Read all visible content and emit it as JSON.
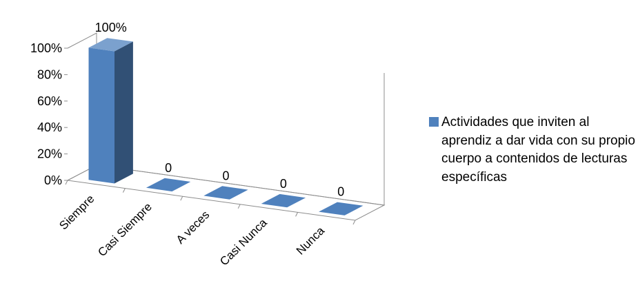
{
  "chart_data": {
    "type": "bar",
    "title": "",
    "xlabel": "",
    "ylabel": "",
    "categories": [
      "Siempre",
      "Casi Siempre",
      "A veces",
      "Casi Nunca",
      "Nunca"
    ],
    "series": [
      {
        "name": "Actividades que inviten al aprendiz a dar vida con su propio cuerpo a contenidos de lecturas específicas",
        "values": [
          1.0,
          0,
          0,
          0,
          0
        ],
        "data_labels": [
          "100%",
          "0",
          "0",
          "0",
          "0"
        ],
        "color": "#4f81bd"
      }
    ],
    "y_ticks": [
      "0%",
      "20%",
      "40%",
      "60%",
      "80%",
      "100%"
    ],
    "ylim": [
      0,
      1
    ],
    "grid": false,
    "legend_position": "right",
    "style": "3d-column"
  }
}
